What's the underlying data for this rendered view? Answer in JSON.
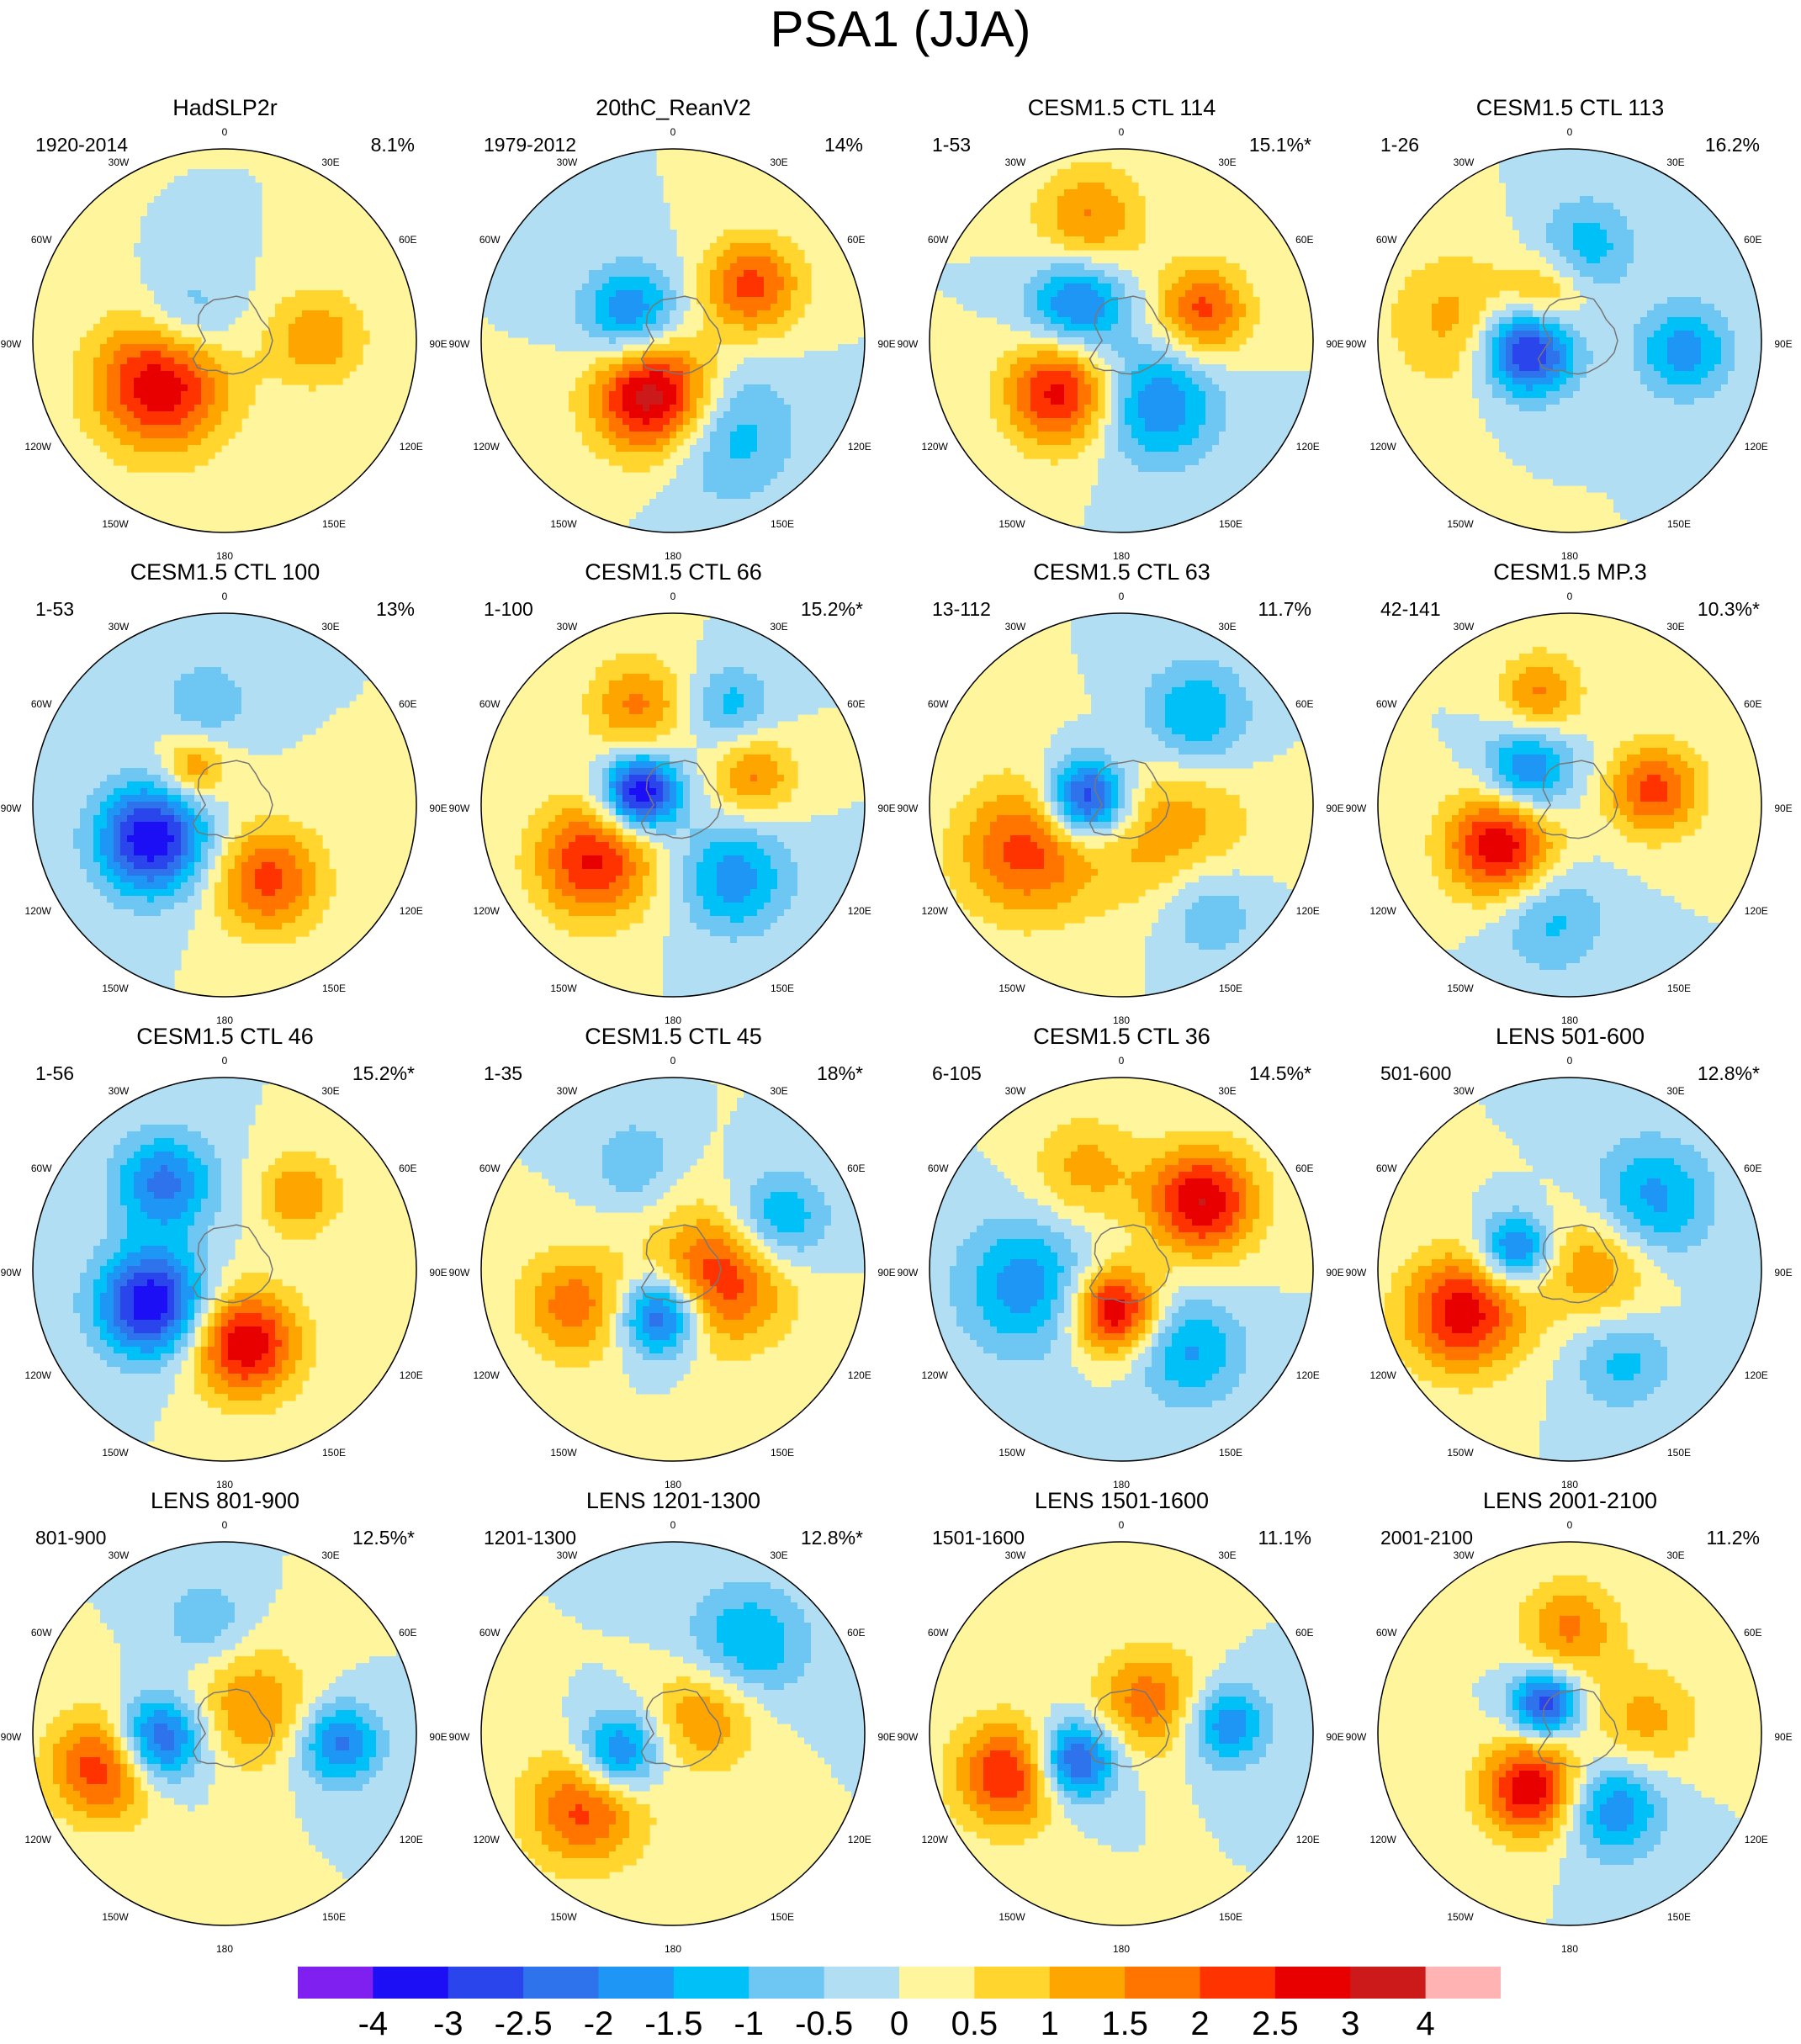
{
  "title": "PSA1 (JJA)",
  "lon_labels": [
    "0",
    "30E",
    "60E",
    "90E",
    "120E",
    "150E",
    "180",
    "150W",
    "120W",
    "90W",
    "60W",
    "30W"
  ],
  "panels": [
    {
      "title": "HadSLP2r",
      "period": "1920-2014",
      "percent": "8.1%",
      "anomalies": [
        {
          "lon": 236,
          "r": 0.4,
          "v": 3.0,
          "s": 0.25
        },
        {
          "lon": 88,
          "r": 0.48,
          "v": 1.4,
          "s": 0.18
        },
        {
          "lon": 302,
          "r": 0.22,
          "v": -1.2,
          "s": 0.18
        }
      ]
    },
    {
      "title": "20thC_ReanV2",
      "period": "1979-2012",
      "percent": "14%",
      "anomalies": [
        {
          "lon": 200,
          "r": 0.3,
          "v": 3.6,
          "s": 0.22
        },
        {
          "lon": 55,
          "r": 0.5,
          "v": 2.2,
          "s": 0.18
        },
        {
          "lon": 300,
          "r": 0.25,
          "v": -2.2,
          "s": 0.18
        },
        {
          "lon": 150,
          "r": 0.55,
          "v": -1.4,
          "s": 0.25
        }
      ]
    },
    {
      "title": "CESM1.5 CTL 114",
      "period": "1-53",
      "percent": "15.1%*",
      "anomalies": [
        {
          "lon": 230,
          "r": 0.42,
          "v": 2.8,
          "s": 0.2
        },
        {
          "lon": 70,
          "r": 0.45,
          "v": 2.2,
          "s": 0.17
        },
        {
          "lon": 310,
          "r": 0.3,
          "v": -2.3,
          "s": 0.18
        },
        {
          "lon": 150,
          "r": 0.38,
          "v": -2.0,
          "s": 0.22
        },
        {
          "lon": 345,
          "r": 0.65,
          "v": 1.6,
          "s": 0.2
        }
      ]
    },
    {
      "title": "CESM1.5 CTL 113",
      "period": "1-26",
      "percent": "16.2%",
      "anomalies": [
        {
          "lon": 260,
          "r": 0.22,
          "v": -3.5,
          "s": 0.17
        },
        {
          "lon": 95,
          "r": 0.6,
          "v": -1.8,
          "s": 0.17
        },
        {
          "lon": 10,
          "r": 0.5,
          "v": -1.3,
          "s": 0.18
        },
        {
          "lon": 280,
          "r": 0.6,
          "v": 1.2,
          "s": 0.25
        },
        {
          "lon": 330,
          "r": 0.25,
          "v": 1.5,
          "s": 0.15
        }
      ]
    },
    {
      "title": "CESM1.5 CTL 100",
      "period": "1-53",
      "percent": "13%",
      "anomalies": [
        {
          "lon": 245,
          "r": 0.42,
          "v": -3.5,
          "s": 0.2
        },
        {
          "lon": 150,
          "r": 0.45,
          "v": 2.2,
          "s": 0.2
        },
        {
          "lon": 320,
          "r": 0.25,
          "v": 1.5,
          "s": 0.12
        },
        {
          "lon": 350,
          "r": 0.55,
          "v": -1.0,
          "s": 0.15
        }
      ]
    },
    {
      "title": "CESM1.5 CTL 66",
      "period": "1-100",
      "percent": "15.2%*",
      "anomalies": [
        {
          "lon": 290,
          "r": 0.18,
          "v": -3.8,
          "s": 0.14
        },
        {
          "lon": 235,
          "r": 0.5,
          "v": 2.6,
          "s": 0.22
        },
        {
          "lon": 340,
          "r": 0.55,
          "v": 1.6,
          "s": 0.18
        },
        {
          "lon": 140,
          "r": 0.5,
          "v": -1.8,
          "s": 0.2
        },
        {
          "lon": 70,
          "r": 0.45,
          "v": 1.6,
          "s": 0.15
        },
        {
          "lon": 30,
          "r": 0.6,
          "v": -1.2,
          "s": 0.15
        }
      ]
    },
    {
      "title": "CESM1.5 CTL 63",
      "period": "13-112",
      "percent": "11.7%",
      "anomalies": [
        {
          "lon": 280,
          "r": 0.18,
          "v": -3.5,
          "s": 0.15
        },
        {
          "lon": 120,
          "r": 0.3,
          "v": 1.4,
          "s": 0.3
        },
        {
          "lon": 245,
          "r": 0.55,
          "v": 2.2,
          "s": 0.25
        },
        {
          "lon": 40,
          "r": 0.6,
          "v": -1.6,
          "s": 0.2
        },
        {
          "lon": 140,
          "r": 0.7,
          "v": -1.2,
          "s": 0.2
        }
      ]
    },
    {
      "title": "CESM1.5 MP.3",
      "period": "42-141",
      "percent": "10.3%*",
      "anomalies": [
        {
          "lon": 240,
          "r": 0.42,
          "v": 3.0,
          "s": 0.2
        },
        {
          "lon": 80,
          "r": 0.45,
          "v": 2.2,
          "s": 0.17
        },
        {
          "lon": 310,
          "r": 0.28,
          "v": -2.2,
          "s": 0.16
        },
        {
          "lon": 345,
          "r": 0.6,
          "v": 1.6,
          "s": 0.15
        },
        {
          "lon": 190,
          "r": 0.6,
          "v": -1.2,
          "s": 0.2
        }
      ]
    },
    {
      "title": "CESM1.5 CTL 46",
      "period": "1-56",
      "percent": "15.2%*",
      "anomalies": [
        {
          "lon": 245,
          "r": 0.42,
          "v": -3.5,
          "s": 0.2
        },
        {
          "lon": 165,
          "r": 0.4,
          "v": 3.0,
          "s": 0.2
        },
        {
          "lon": 325,
          "r": 0.55,
          "v": -2.2,
          "s": 0.18
        },
        {
          "lon": 45,
          "r": 0.55,
          "v": 1.5,
          "s": 0.15
        }
      ]
    },
    {
      "title": "CESM1.5 CTL 45",
      "period": "1-35",
      "percent": "18%*",
      "anomalies": [
        {
          "lon": 195,
          "r": 0.25,
          "v": -3.0,
          "s": 0.15
        },
        {
          "lon": 100,
          "r": 0.25,
          "v": 2.5,
          "s": 0.25
        },
        {
          "lon": 250,
          "r": 0.55,
          "v": 1.8,
          "s": 0.2
        },
        {
          "lon": 65,
          "r": 0.6,
          "v": -1.8,
          "s": 0.18
        },
        {
          "lon": 340,
          "r": 0.6,
          "v": -1.0,
          "s": 0.15
        }
      ]
    },
    {
      "title": "CESM1.5 CTL 36",
      "period": "6-105",
      "percent": "14.5%*",
      "anomalies": [
        {
          "lon": 190,
          "r": 0.22,
          "v": 3.2,
          "s": 0.16
        },
        {
          "lon": 50,
          "r": 0.55,
          "v": 3.0,
          "s": 0.2
        },
        {
          "lon": 260,
          "r": 0.5,
          "v": -1.8,
          "s": 0.25
        },
        {
          "lon": 140,
          "r": 0.55,
          "v": -1.6,
          "s": 0.2
        },
        {
          "lon": 340,
          "r": 0.55,
          "v": 1.2,
          "s": 0.2
        }
      ]
    },
    {
      "title": "LENS 501-600",
      "period": "501-600",
      "percent": "12.8%*",
      "anomalies": [
        {
          "lon": 248,
          "r": 0.6,
          "v": 2.8,
          "s": 0.22
        },
        {
          "lon": 80,
          "r": 0.15,
          "v": 1.5,
          "s": 0.22
        },
        {
          "lon": 290,
          "r": 0.3,
          "v": -2.5,
          "s": 0.13
        },
        {
          "lon": 50,
          "r": 0.55,
          "v": -1.8,
          "s": 0.22
        },
        {
          "lon": 150,
          "r": 0.55,
          "v": -1.2,
          "s": 0.18
        }
      ]
    },
    {
      "title": "LENS 801-900",
      "period": "801-900",
      "percent": "12.5%*",
      "anomalies": [
        {
          "lon": 265,
          "r": 0.35,
          "v": -3.0,
          "s": 0.16
        },
        {
          "lon": 255,
          "r": 0.65,
          "v": 2.5,
          "s": 0.2
        },
        {
          "lon": 50,
          "r": 0.2,
          "v": 1.5,
          "s": 0.22
        },
        {
          "lon": 95,
          "r": 0.6,
          "v": -2.2,
          "s": 0.15
        },
        {
          "lon": 350,
          "r": 0.6,
          "v": -1.0,
          "s": 0.15
        }
      ]
    },
    {
      "title": "LENS 1201-1300",
      "period": "1201-1300",
      "percent": "12.8%*",
      "anomalies": [
        {
          "lon": 250,
          "r": 0.3,
          "v": -2.5,
          "s": 0.15
        },
        {
          "lon": 230,
          "r": 0.6,
          "v": 2.2,
          "s": 0.22
        },
        {
          "lon": 60,
          "r": 0.2,
          "v": 1.6,
          "s": 0.2
        },
        {
          "lon": 40,
          "r": 0.6,
          "v": -1.6,
          "s": 0.22
        }
      ]
    },
    {
      "title": "LENS 1501-1600",
      "period": "1501-1600",
      "percent": "11.1%",
      "anomalies": [
        {
          "lon": 240,
          "r": 0.28,
          "v": -3.0,
          "s": 0.15
        },
        {
          "lon": 250,
          "r": 0.62,
          "v": 2.6,
          "s": 0.2
        },
        {
          "lon": 40,
          "r": 0.22,
          "v": 1.8,
          "s": 0.2
        },
        {
          "lon": 85,
          "r": 0.55,
          "v": -2.0,
          "s": 0.15
        }
      ]
    },
    {
      "title": "LENS 2001-2100",
      "period": "2001-2100",
      "percent": "11.2%",
      "anomalies": [
        {
          "lon": 320,
          "r": 0.2,
          "v": -3.0,
          "s": 0.12
        },
        {
          "lon": 215,
          "r": 0.35,
          "v": 3.0,
          "s": 0.18
        },
        {
          "lon": 150,
          "r": 0.45,
          "v": -2.0,
          "s": 0.18
        },
        {
          "lon": 0,
          "r": 0.55,
          "v": 1.6,
          "s": 0.18
        },
        {
          "lon": 80,
          "r": 0.4,
          "v": 1.2,
          "s": 0.2
        }
      ]
    }
  ],
  "colorbar": {
    "colors": [
      "#7f1ff0",
      "#1c0ff5",
      "#2b45ec",
      "#2f73ec",
      "#1e96f5",
      "#00c0f8",
      "#6ec6f2",
      "#b1def2",
      "#fff59d",
      "#ffd52e",
      "#ffa500",
      "#ff7500",
      "#ff3300",
      "#e80000",
      "#cc1a1a",
      "#ffb3b3"
    ],
    "labels": [
      "-4",
      "-3",
      "-2.5",
      "-2",
      "-1.5",
      "-1",
      "-0.5",
      "0",
      "0.5",
      "1",
      "1.5",
      "2",
      "2.5",
      "3",
      "4"
    ],
    "boundaries": [
      -4,
      -3,
      -2.5,
      -2,
      -1.5,
      -1,
      -0.5,
      0,
      0.5,
      1,
      1.5,
      2,
      2.5,
      3,
      4
    ]
  }
}
